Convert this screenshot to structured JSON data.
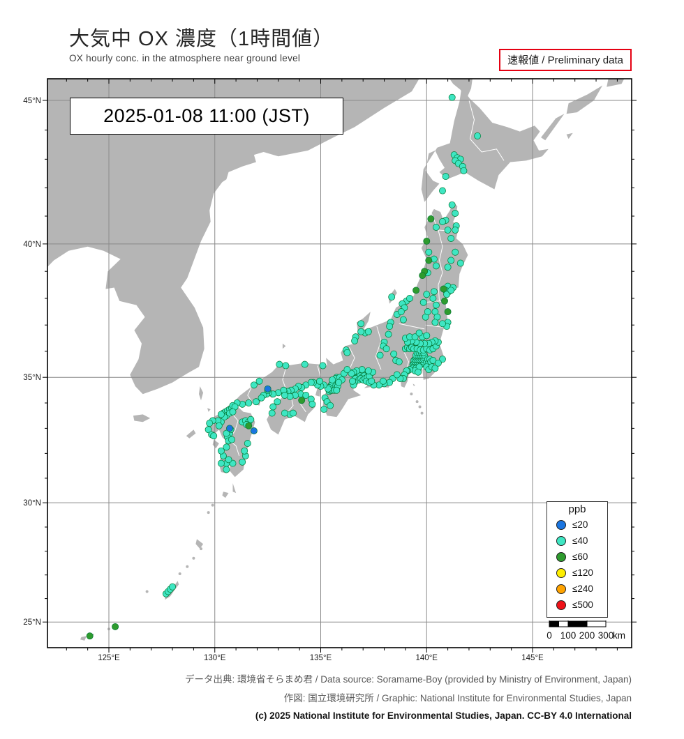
{
  "header": {
    "title_jp": "大気中 OX 濃度（1時間値）",
    "subtitle_en": "OX hourly conc. in the atmosphere near ground level",
    "preliminary_label": "速報値 / Preliminary data"
  },
  "map": {
    "timestamp": "2025-01-08  11:00 (JST)",
    "lat_ticks": [
      {
        "label": "45°N",
        "value": 45
      },
      {
        "label": "40°N",
        "value": 40
      },
      {
        "label": "35°N",
        "value": 35
      },
      {
        "label": "30°N",
        "value": 30
      },
      {
        "label": "25°N",
        "value": 25
      }
    ],
    "lon_ticks": [
      {
        "label": "125°E",
        "value": 125
      },
      {
        "label": "130°E",
        "value": 130
      },
      {
        "label": "135°E",
        "value": 135
      },
      {
        "label": "140°E",
        "value": 140
      },
      {
        "label": "145°E",
        "value": 145
      }
    ],
    "scalebar": {
      "tick_labels": [
        "0",
        "100",
        "200",
        "300"
      ],
      "unit": "km"
    }
  },
  "legend": {
    "title": "ppb",
    "levels": [
      {
        "key": "le20",
        "label": "≤20",
        "color": "#1a75e0"
      },
      {
        "key": "le40",
        "label": "≤40",
        "color": "#3ee6c3"
      },
      {
        "key": "le60",
        "label": "≤60",
        "color": "#2e9b2e"
      },
      {
        "key": "le120",
        "label": "≤120",
        "color": "#feee00"
      },
      {
        "key": "le240",
        "label": "≤240",
        "color": "#ffa300"
      },
      {
        "key": "le500",
        "label": "≤500",
        "color": "#ee1118"
      }
    ]
  },
  "stations": {
    "le20": [
      [
        130.7,
        33.0
      ],
      [
        131.85,
        32.9
      ],
      [
        132.5,
        34.55
      ]
    ],
    "le60": [
      [
        140.2,
        40.9
      ],
      [
        140.0,
        40.1
      ],
      [
        140.1,
        39.4
      ],
      [
        139.9,
        39.0
      ],
      [
        139.8,
        38.85
      ],
      [
        139.5,
        38.3
      ],
      [
        140.8,
        38.35
      ],
      [
        140.85,
        37.9
      ],
      [
        141.0,
        37.5
      ],
      [
        131.6,
        33.1
      ],
      [
        134.1,
        34.1
      ],
      [
        125.3,
        24.8
      ],
      [
        124.1,
        24.4
      ]
    ],
    "le40": [
      [
        141.2,
        45.1
      ],
      [
        142.4,
        43.8
      ],
      [
        141.3,
        43.15
      ],
      [
        141.45,
        43.05
      ],
      [
        141.6,
        43.0
      ],
      [
        141.35,
        42.95
      ],
      [
        141.5,
        42.85
      ],
      [
        141.7,
        42.75
      ],
      [
        141.75,
        42.6
      ],
      [
        140.9,
        42.4
      ],
      [
        140.75,
        41.9
      ],
      [
        141.2,
        41.4
      ],
      [
        141.35,
        41.1
      ],
      [
        140.9,
        40.85
      ],
      [
        141.4,
        40.65
      ],
      [
        140.75,
        40.8
      ],
      [
        141.0,
        40.5
      ],
      [
        140.45,
        40.6
      ],
      [
        141.35,
        40.5
      ],
      [
        141.15,
        40.2
      ],
      [
        141.35,
        39.7
      ],
      [
        141.15,
        39.4
      ],
      [
        141.6,
        39.3
      ],
      [
        141.0,
        39.15
      ],
      [
        140.1,
        39.7
      ],
      [
        140.35,
        39.45
      ],
      [
        140.45,
        39.2
      ],
      [
        140.05,
        38.95
      ],
      [
        141.0,
        38.45
      ],
      [
        141.25,
        38.4
      ],
      [
        140.9,
        38.3
      ],
      [
        141.05,
        38.25
      ],
      [
        140.95,
        38.15
      ],
      [
        141.15,
        38.3
      ],
      [
        140.35,
        38.25
      ],
      [
        140.0,
        38.15
      ],
      [
        139.85,
        37.85
      ],
      [
        140.3,
        38.0
      ],
      [
        140.45,
        37.75
      ],
      [
        140.4,
        37.5
      ],
      [
        140.5,
        37.3
      ],
      [
        141.0,
        37.1
      ],
      [
        140.95,
        36.95
      ],
      [
        140.75,
        37.05
      ],
      [
        140.4,
        37.1
      ],
      [
        139.95,
        37.3
      ],
      [
        140.05,
        37.5
      ],
      [
        139.05,
        37.9
      ],
      [
        139.2,
        38.0
      ],
      [
        138.85,
        37.8
      ],
      [
        138.95,
        37.65
      ],
      [
        138.6,
        37.4
      ],
      [
        138.8,
        37.5
      ],
      [
        138.3,
        37.1
      ],
      [
        138.25,
        36.95
      ],
      [
        138.9,
        37.2
      ],
      [
        138.35,
        38.05
      ],
      [
        139.35,
        35.5
      ],
      [
        139.4,
        35.55
      ],
      [
        139.45,
        35.5
      ],
      [
        139.5,
        35.55
      ],
      [
        139.55,
        35.5
      ],
      [
        139.6,
        35.55
      ],
      [
        139.65,
        35.5
      ],
      [
        139.7,
        35.55
      ],
      [
        139.75,
        35.5
      ],
      [
        139.8,
        35.55
      ],
      [
        139.4,
        35.65
      ],
      [
        139.45,
        35.6
      ],
      [
        139.5,
        35.65
      ],
      [
        139.55,
        35.6
      ],
      [
        139.6,
        35.65
      ],
      [
        139.65,
        35.6
      ],
      [
        139.7,
        35.65
      ],
      [
        139.75,
        35.6
      ],
      [
        139.8,
        35.65
      ],
      [
        139.85,
        35.6
      ],
      [
        139.45,
        35.7
      ],
      [
        139.5,
        35.75
      ],
      [
        139.55,
        35.7
      ],
      [
        139.6,
        35.75
      ],
      [
        139.65,
        35.7
      ],
      [
        139.7,
        35.75
      ],
      [
        139.75,
        35.7
      ],
      [
        139.8,
        35.75
      ],
      [
        139.85,
        35.7
      ],
      [
        139.9,
        35.75
      ],
      [
        139.5,
        35.85
      ],
      [
        139.6,
        35.85
      ],
      [
        139.7,
        35.85
      ],
      [
        139.8,
        35.85
      ],
      [
        139.9,
        35.85
      ],
      [
        139.55,
        35.95
      ],
      [
        139.65,
        35.95
      ],
      [
        139.75,
        35.95
      ],
      [
        139.85,
        35.95
      ],
      [
        140.0,
        35.6
      ],
      [
        140.05,
        35.7
      ],
      [
        140.1,
        35.55
      ],
      [
        140.15,
        35.7
      ],
      [
        140.2,
        35.6
      ],
      [
        140.3,
        35.65
      ],
      [
        139.0,
        36.1
      ],
      [
        139.1,
        36.15
      ],
      [
        139.2,
        36.1
      ],
      [
        139.3,
        36.15
      ],
      [
        139.4,
        36.1
      ],
      [
        139.55,
        36.1
      ],
      [
        139.7,
        36.05
      ],
      [
        139.85,
        36.05
      ],
      [
        140.0,
        36.1
      ],
      [
        140.15,
        36.05
      ],
      [
        140.3,
        36.1
      ],
      [
        140.45,
        36.2
      ],
      [
        140.55,
        36.35
      ],
      [
        140.4,
        36.4
      ],
      [
        140.25,
        36.35
      ],
      [
        140.1,
        36.3
      ],
      [
        139.9,
        36.3
      ],
      [
        139.7,
        36.3
      ],
      [
        139.5,
        36.35
      ],
      [
        139.3,
        36.4
      ],
      [
        139.1,
        36.35
      ],
      [
        139.0,
        36.5
      ],
      [
        139.2,
        36.55
      ],
      [
        139.45,
        36.55
      ],
      [
        139.8,
        36.55
      ],
      [
        140.0,
        36.6
      ],
      [
        139.65,
        36.7
      ],
      [
        139.35,
        35.35
      ],
      [
        139.5,
        35.35
      ],
      [
        139.6,
        35.3
      ],
      [
        139.65,
        35.4
      ],
      [
        139.45,
        35.25
      ],
      [
        139.6,
        35.2
      ],
      [
        139.2,
        35.3
      ],
      [
        139.1,
        35.25
      ],
      [
        140.0,
        35.4
      ],
      [
        140.1,
        35.3
      ],
      [
        140.25,
        35.4
      ],
      [
        140.4,
        35.35
      ],
      [
        140.75,
        35.7
      ],
      [
        140.55,
        35.55
      ],
      [
        138.55,
        35.65
      ],
      [
        138.7,
        35.6
      ],
      [
        138.2,
        36.65
      ],
      [
        138.0,
        36.35
      ],
      [
        137.95,
        36.2
      ],
      [
        138.1,
        36.1
      ],
      [
        138.45,
        35.9
      ],
      [
        137.8,
        35.85
      ],
      [
        139.05,
        35.25
      ],
      [
        138.95,
        35.1
      ],
      [
        138.9,
        34.95
      ],
      [
        138.75,
        34.95
      ],
      [
        138.4,
        34.95
      ],
      [
        138.25,
        34.8
      ],
      [
        138.0,
        34.75
      ],
      [
        137.75,
        34.7
      ],
      [
        137.5,
        34.7
      ],
      [
        138.6,
        35.1
      ],
      [
        137.95,
        34.85
      ],
      [
        136.6,
        35.05
      ],
      [
        136.7,
        35.1
      ],
      [
        136.8,
        35.15
      ],
      [
        136.9,
        35.1
      ],
      [
        137.0,
        35.1
      ],
      [
        136.75,
        35.0
      ],
      [
        136.85,
        35.05
      ],
      [
        136.95,
        35.0
      ],
      [
        137.05,
        35.05
      ],
      [
        136.65,
        34.95
      ],
      [
        136.8,
        34.9
      ],
      [
        136.9,
        34.95
      ],
      [
        137.0,
        34.9
      ],
      [
        137.1,
        34.95
      ],
      [
        137.2,
        35.0
      ],
      [
        137.3,
        35.05
      ],
      [
        137.15,
        34.85
      ],
      [
        137.3,
        34.8
      ],
      [
        137.4,
        34.85
      ],
      [
        136.6,
        34.8
      ],
      [
        136.55,
        34.7
      ],
      [
        136.5,
        34.85
      ],
      [
        137.45,
        35.2
      ],
      [
        137.25,
        35.25
      ],
      [
        136.95,
        35.3
      ],
      [
        136.7,
        35.25
      ],
      [
        136.55,
        35.2
      ],
      [
        136.45,
        35.15
      ],
      [
        137.1,
        36.7
      ],
      [
        137.25,
        36.75
      ],
      [
        136.9,
        36.75
      ],
      [
        136.65,
        36.55
      ],
      [
        136.6,
        36.4
      ],
      [
        136.2,
        36.05
      ],
      [
        136.25,
        35.95
      ],
      [
        136.9,
        37.05
      ],
      [
        135.4,
        34.45
      ],
      [
        135.45,
        34.5
      ],
      [
        135.5,
        34.55
      ],
      [
        135.55,
        34.5
      ],
      [
        135.6,
        34.55
      ],
      [
        135.65,
        34.6
      ],
      [
        135.5,
        34.65
      ],
      [
        135.55,
        34.6
      ],
      [
        135.6,
        34.65
      ],
      [
        135.45,
        34.6
      ],
      [
        135.5,
        34.7
      ],
      [
        135.6,
        34.75
      ],
      [
        135.65,
        34.7
      ],
      [
        135.7,
        34.75
      ],
      [
        135.55,
        34.75
      ],
      [
        135.4,
        34.6
      ],
      [
        135.35,
        34.55
      ],
      [
        135.7,
        34.65
      ],
      [
        135.75,
        34.6
      ],
      [
        135.65,
        34.5
      ],
      [
        135.75,
        35.0
      ],
      [
        135.7,
        34.95
      ],
      [
        135.55,
        34.9
      ],
      [
        135.8,
        34.65
      ],
      [
        135.75,
        34.5
      ],
      [
        135.15,
        34.7
      ],
      [
        135.0,
        34.65
      ],
      [
        134.85,
        34.7
      ],
      [
        134.65,
        34.8
      ],
      [
        134.95,
        34.85
      ],
      [
        135.9,
        35.0
      ],
      [
        136.1,
        35.15
      ],
      [
        136.25,
        35.3
      ],
      [
        136.0,
        34.9
      ],
      [
        135.85,
        34.8
      ],
      [
        135.2,
        34.2
      ],
      [
        135.3,
        34.05
      ],
      [
        135.45,
        33.9
      ],
      [
        135.15,
        33.75
      ],
      [
        134.55,
        34.8
      ],
      [
        134.3,
        34.7
      ],
      [
        134.1,
        34.6
      ],
      [
        133.95,
        34.65
      ],
      [
        133.8,
        34.55
      ],
      [
        133.6,
        34.5
      ],
      [
        133.45,
        34.45
      ],
      [
        133.3,
        34.4
      ],
      [
        133.0,
        34.4
      ],
      [
        132.75,
        34.35
      ],
      [
        132.55,
        34.4
      ],
      [
        132.45,
        34.35
      ],
      [
        132.3,
        34.3
      ],
      [
        132.2,
        34.2
      ],
      [
        131.95,
        34.05
      ],
      [
        131.6,
        34.0
      ],
      [
        131.3,
        33.95
      ],
      [
        131.05,
        34.0
      ],
      [
        133.25,
        34.5
      ],
      [
        132.5,
        34.5
      ],
      [
        133.05,
        35.5
      ],
      [
        133.35,
        35.45
      ],
      [
        134.25,
        35.5
      ],
      [
        135.1,
        35.45
      ],
      [
        131.85,
        34.7
      ],
      [
        132.1,
        34.85
      ],
      [
        134.05,
        34.35
      ],
      [
        134.3,
        34.3
      ],
      [
        134.55,
        34.15
      ],
      [
        134.6,
        33.95
      ],
      [
        133.8,
        34.3
      ],
      [
        133.55,
        34.25
      ],
      [
        133.3,
        34.3
      ],
      [
        132.95,
        34.05
      ],
      [
        132.75,
        33.85
      ],
      [
        132.7,
        33.6
      ],
      [
        133.55,
        33.55
      ],
      [
        133.7,
        33.6
      ],
      [
        133.3,
        33.6
      ],
      [
        130.4,
        33.6
      ],
      [
        130.5,
        33.65
      ],
      [
        130.6,
        33.7
      ],
      [
        130.7,
        33.75
      ],
      [
        130.8,
        33.8
      ],
      [
        130.85,
        33.9
      ],
      [
        130.95,
        33.85
      ],
      [
        130.55,
        33.5
      ],
      [
        130.45,
        33.45
      ],
      [
        130.7,
        33.6
      ],
      [
        130.85,
        33.65
      ],
      [
        130.3,
        33.55
      ],
      [
        130.3,
        33.25
      ],
      [
        130.15,
        33.3
      ],
      [
        129.9,
        33.3
      ],
      [
        129.75,
        33.2
      ],
      [
        129.7,
        32.95
      ],
      [
        129.85,
        32.75
      ],
      [
        129.95,
        32.7
      ],
      [
        130.2,
        33.1
      ],
      [
        130.7,
        32.8
      ],
      [
        130.75,
        32.95
      ],
      [
        130.6,
        32.65
      ],
      [
        130.65,
        32.5
      ],
      [
        130.8,
        32.55
      ],
      [
        130.55,
        32.8
      ],
      [
        131.3,
        33.25
      ],
      [
        131.45,
        33.3
      ],
      [
        131.6,
        33.25
      ],
      [
        131.7,
        33.35
      ],
      [
        131.5,
        33.15
      ],
      [
        131.45,
        31.9
      ],
      [
        131.4,
        32.1
      ],
      [
        131.3,
        31.65
      ],
      [
        131.55,
        32.4
      ],
      [
        130.55,
        31.6
      ],
      [
        130.3,
        31.6
      ],
      [
        130.55,
        31.35
      ],
      [
        130.85,
        31.6
      ],
      [
        130.4,
        31.9
      ],
      [
        130.65,
        31.75
      ],
      [
        130.3,
        32.1
      ],
      [
        130.55,
        32.25
      ],
      [
        127.7,
        26.2
      ],
      [
        127.8,
        26.3
      ],
      [
        127.9,
        26.4
      ],
      [
        128.0,
        26.5
      ]
    ]
  },
  "footer": {
    "line1": "データ出典: 環境省そらまめ君 / Data source: Soramame-Boy (provided by Ministry of Environment, Japan)",
    "line2": "作図: 国立環境研究所 / Graphic: National Institute for Environmental Studies, Japan",
    "line3": "(c) 2025 National Institute for Environmental Studies, Japan. CC-BY 4.0 International"
  }
}
